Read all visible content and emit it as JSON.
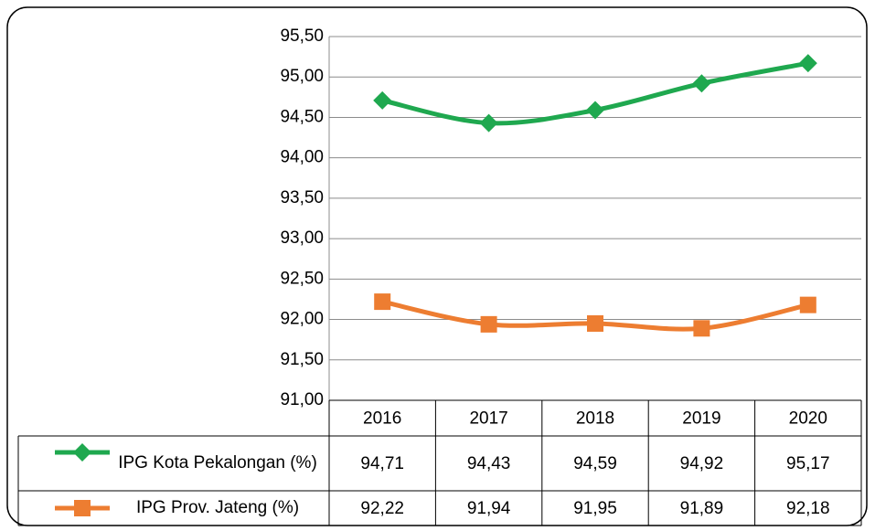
{
  "chart_data": {
    "type": "line",
    "categories": [
      "2016",
      "2017",
      "2018",
      "2019",
      "2020"
    ],
    "series": [
      {
        "name": "IPG Kota Pekalongan (%)",
        "color": "#1fa84f",
        "marker": "diamond",
        "values": [
          94.71,
          94.43,
          94.59,
          94.92,
          95.17
        ],
        "value_labels": [
          "94,71",
          "94,43",
          "94,59",
          "94,92",
          "95,17"
        ]
      },
      {
        "name": "IPG Prov. Jateng (%)",
        "color": "#ed7d31",
        "marker": "square",
        "values": [
          92.22,
          91.94,
          91.95,
          91.89,
          92.18
        ],
        "value_labels": [
          "92,22",
          "91,94",
          "91,95",
          "91,89",
          "92,18"
        ]
      }
    ],
    "ylim": [
      91,
      95.5
    ],
    "yticks": [
      {
        "value": 91,
        "label": "91,00"
      },
      {
        "value": 91.5,
        "label": "91,50"
      },
      {
        "value": 92,
        "label": "92,00"
      },
      {
        "value": 92.5,
        "label": "92,50"
      },
      {
        "value": 93,
        "label": "93,00"
      },
      {
        "value": 93.5,
        "label": "93,50"
      },
      {
        "value": 94,
        "label": "94,00"
      },
      {
        "value": 94.5,
        "label": "94,50"
      },
      {
        "value": 95,
        "label": "95,00"
      },
      {
        "value": 95.5,
        "label": "95,50"
      }
    ],
    "grid": true,
    "smooth": true,
    "data_table": true
  }
}
